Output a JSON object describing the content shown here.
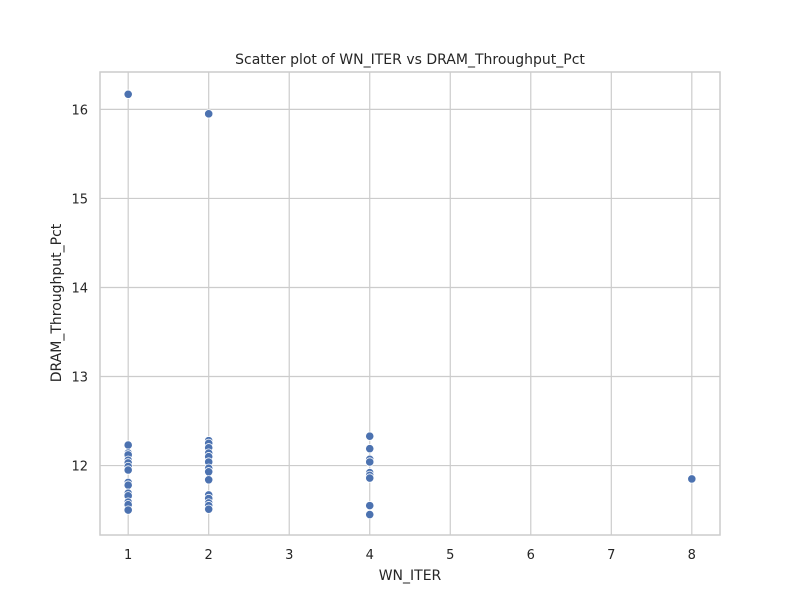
{
  "chart_data": {
    "type": "scatter",
    "title": "Scatter plot of WN_ITER vs DRAM_Throughput_Pct",
    "xlabel": "WN_ITER",
    "ylabel": "DRAM_Throughput_Pct",
    "xlim": [
      0.65,
      8.35
    ],
    "ylim": [
      11.22,
      16.42
    ],
    "xticks": [
      "1",
      "2",
      "3",
      "4",
      "5",
      "6",
      "7",
      "8"
    ],
    "yticks": [
      "12",
      "13",
      "14",
      "15",
      "16"
    ],
    "grid": true,
    "legend": "none",
    "marker_color": "#4c72b0",
    "points": [
      {
        "x": 1,
        "y": 16.17
      },
      {
        "x": 1,
        "y": 12.23
      },
      {
        "x": 1,
        "y": 12.14
      },
      {
        "x": 1,
        "y": 12.12
      },
      {
        "x": 1,
        "y": 12.06
      },
      {
        "x": 1,
        "y": 12.03
      },
      {
        "x": 1,
        "y": 11.99
      },
      {
        "x": 1,
        "y": 11.95
      },
      {
        "x": 1,
        "y": 11.81
      },
      {
        "x": 1,
        "y": 11.78
      },
      {
        "x": 1,
        "y": 11.69
      },
      {
        "x": 1,
        "y": 11.66
      },
      {
        "x": 1,
        "y": 11.59
      },
      {
        "x": 1,
        "y": 11.56
      },
      {
        "x": 1,
        "y": 11.5
      },
      {
        "x": 2,
        "y": 15.95
      },
      {
        "x": 2,
        "y": 12.28
      },
      {
        "x": 2,
        "y": 12.25
      },
      {
        "x": 2,
        "y": 12.2
      },
      {
        "x": 2,
        "y": 12.14
      },
      {
        "x": 2,
        "y": 12.1
      },
      {
        "x": 2,
        "y": 12.04
      },
      {
        "x": 2,
        "y": 11.97
      },
      {
        "x": 2,
        "y": 11.93
      },
      {
        "x": 2,
        "y": 11.84
      },
      {
        "x": 2,
        "y": 11.67
      },
      {
        "x": 2,
        "y": 11.63
      },
      {
        "x": 2,
        "y": 11.58
      },
      {
        "x": 2,
        "y": 11.55
      },
      {
        "x": 2,
        "y": 11.51
      },
      {
        "x": 4,
        "y": 12.33
      },
      {
        "x": 4,
        "y": 12.19
      },
      {
        "x": 4,
        "y": 12.07
      },
      {
        "x": 4,
        "y": 12.04
      },
      {
        "x": 4,
        "y": 11.92
      },
      {
        "x": 4,
        "y": 11.89
      },
      {
        "x": 4,
        "y": 11.86
      },
      {
        "x": 4,
        "y": 11.55
      },
      {
        "x": 4,
        "y": 11.45
      },
      {
        "x": 8,
        "y": 11.85
      }
    ]
  }
}
